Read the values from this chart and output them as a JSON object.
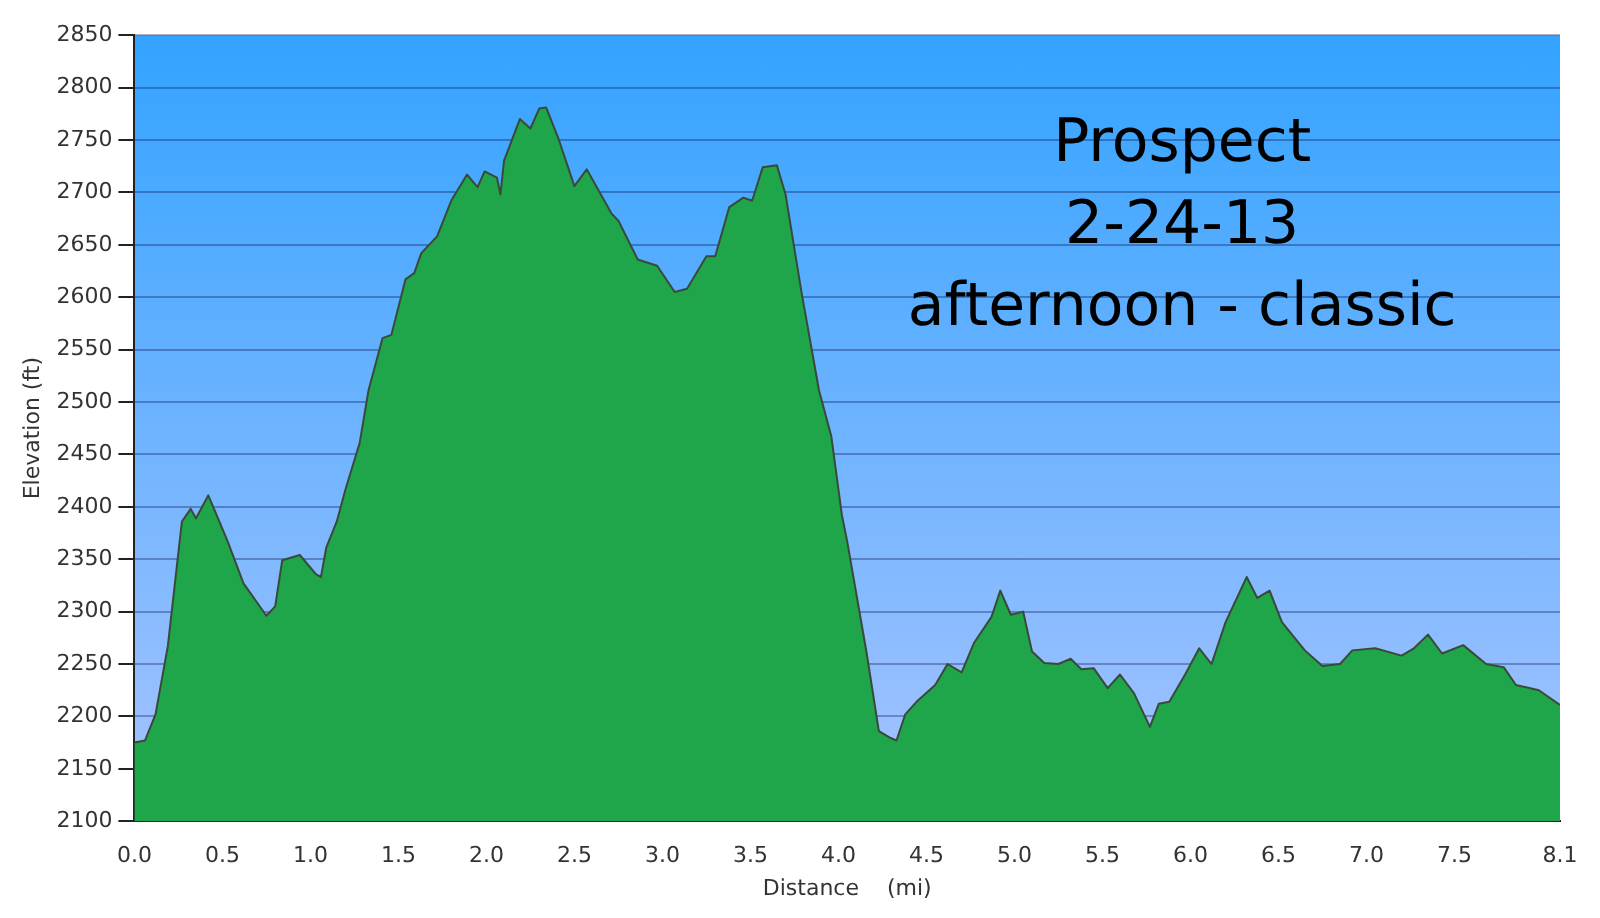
{
  "chart_data": {
    "type": "area",
    "xlabel": "Distance    (mi)",
    "ylabel": "Elevation (ft)",
    "annotations": [
      "Prospect",
      "2-24-13",
      "afternoon - classic"
    ],
    "x": [
      0,
      0.06,
      0.12,
      0.19,
      0.27,
      0.32,
      0.35,
      0.42,
      0.53,
      0.62,
      0.7,
      0.75,
      0.8,
      0.84,
      0.94,
      1.03,
      1.06,
      1.09,
      1.15,
      1.2,
      1.28,
      1.33,
      1.41,
      1.46,
      1.54,
      1.59,
      1.63,
      1.72,
      1.8,
      1.89,
      1.95,
      1.99,
      2.06,
      2.08,
      2.1,
      2.19,
      2.25,
      2.3,
      2.34,
      2.41,
      2.5,
      2.57,
      2.71,
      2.75,
      2.86,
      2.97,
      3.07,
      3.14,
      3.25,
      3.3,
      3.38,
      3.46,
      3.51,
      3.57,
      3.65,
      3.7,
      3.79,
      3.89,
      3.96,
      4.02,
      4.05,
      4.16,
      4.23,
      4.29,
      4.33,
      4.38,
      4.45,
      4.55,
      4.62,
      4.7,
      4.77,
      4.87,
      4.92,
      4.98,
      5.05,
      5.1,
      5.17,
      5.25,
      5.32,
      5.38,
      5.45,
      5.53,
      5.6,
      5.68,
      5.77,
      5.82,
      5.88,
      5.97,
      6.05,
      6.12,
      6.2,
      6.32,
      6.38,
      6.45,
      6.52,
      6.65,
      6.75,
      6.85,
      6.92,
      7.05,
      7.2,
      7.27,
      7.35,
      7.43,
      7.55,
      7.68,
      7.78,
      7.85,
      7.98,
      8.1
    ],
    "series": [
      {
        "color": "#1fa64a",
        "values": [
          2175,
          2177,
          2202,
          2267,
          2386,
          2398,
          2389,
          2411,
          2367,
          2327,
          2308,
          2296,
          2305,
          2349,
          2354,
          2336,
          2333,
          2361,
          2386,
          2417,
          2461,
          2511,
          2561,
          2564,
          2617,
          2623,
          2642,
          2658,
          2692,
          2717,
          2705,
          2720,
          2714,
          2698,
          2730,
          2770,
          2761,
          2780,
          2781,
          2751,
          2706,
          2722,
          2680,
          2673,
          2636,
          2630,
          2605,
          2608,
          2639,
          2639,
          2686,
          2695,
          2692,
          2724,
          2726,
          2698,
          2605,
          2511,
          2467,
          2392,
          2367,
          2261,
          2186,
          2180,
          2177,
          2202,
          2215,
          2230,
          2250,
          2242,
          2270,
          2295,
          2320,
          2297,
          2300,
          2262,
          2251,
          2250,
          2255,
          2245,
          2246,
          2227,
          2240,
          2222,
          2190,
          2212,
          2214,
          2240,
          2265,
          2250,
          2290,
          2333,
          2313,
          2320,
          2290,
          2263,
          2248,
          2250,
          2263,
          2265,
          2258,
          2265,
          2278,
          2260,
          2268,
          2250,
          2247,
          2230,
          2225,
          2211
        ]
      }
    ],
    "xlim": [
      0,
      8.1
    ],
    "xticks": [
      {
        "value": 0,
        "label": "0.0"
      },
      0.5,
      {
        "value": 1,
        "label": "1.0"
      },
      1.5,
      {
        "value": 2,
        "label": "2.0"
      },
      2.5,
      {
        "value": 3,
        "label": "3.0"
      },
      3.5,
      {
        "value": 4,
        "label": "4.0"
      },
      4.5,
      {
        "value": 5,
        "label": "5.0"
      },
      5.5,
      {
        "value": 6,
        "label": "6.0"
      },
      6.5,
      {
        "value": 7,
        "label": "7.0"
      },
      7.5,
      8.1
    ],
    "ylim": [
      2100,
      2850
    ],
    "yticks": [
      2100,
      2150,
      2200,
      2250,
      2300,
      2350,
      2400,
      2450,
      2500,
      2550,
      2600,
      2650,
      2700,
      2750,
      2800,
      2850
    ],
    "grid": "y",
    "legend": false,
    "marker": "none",
    "line_style": "solid"
  }
}
